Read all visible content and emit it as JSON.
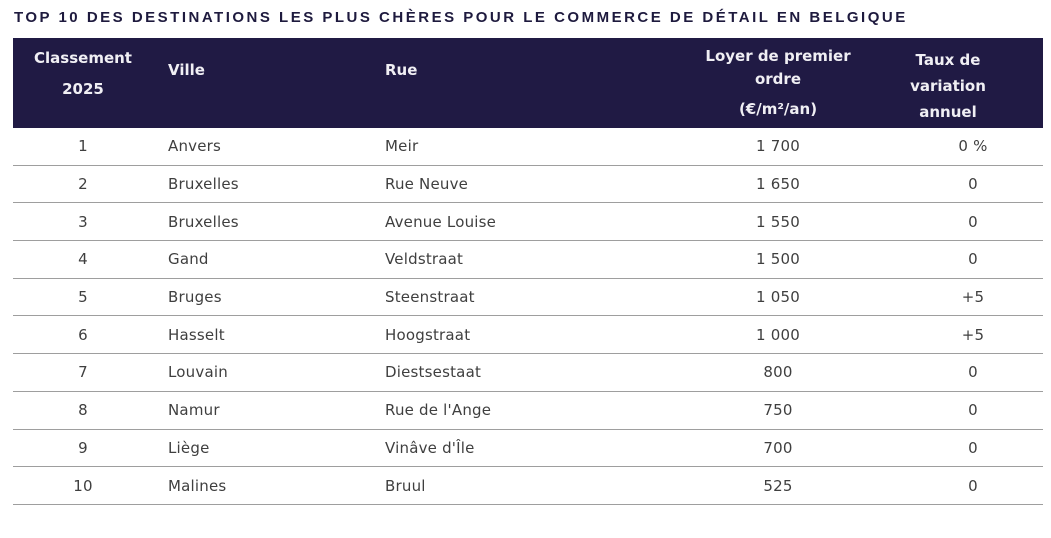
{
  "title": "TOP 10 DES DESTINATIONS LES PLUS CHÈRES POUR LE COMMERCE DE DÉTAIL EN BELGIQUE",
  "colors": {
    "header_bg": "#201a44",
    "header_text": "#f0eff4",
    "title_text": "#1e1a3e",
    "body_text": "#3f3f3f",
    "divider": "#9e9e9e"
  },
  "table": {
    "headers": {
      "rank_line1": "Classement",
      "rank_line2": "2025",
      "city": "Ville",
      "street": "Rue",
      "rent_main": "Loyer de premier ordre",
      "rent_unit": "(€/m²/an)",
      "variation": "Taux de variation annuel"
    },
    "rows": [
      {
        "rank": "1",
        "city": "Anvers",
        "street": "Meir",
        "rent": "1 700",
        "variation": "0 %"
      },
      {
        "rank": "2",
        "city": "Bruxelles",
        "street": "Rue Neuve",
        "rent": "1 650",
        "variation": "0"
      },
      {
        "rank": "3",
        "city": "Bruxelles",
        "street": "Avenue Louise",
        "rent": "1 550",
        "variation": "0"
      },
      {
        "rank": "4",
        "city": "Gand",
        "street": "Veldstraat",
        "rent": "1 500",
        "variation": "0"
      },
      {
        "rank": "5",
        "city": "Bruges",
        "street": "Steenstraat",
        "rent": "1 050",
        "variation": "+5"
      },
      {
        "rank": "6",
        "city": "Hasselt",
        "street": "Hoogstraat",
        "rent": "1 000",
        "variation": "+5"
      },
      {
        "rank": "7",
        "city": "Louvain",
        "street": "Diestsestaat",
        "rent": "800",
        "variation": "0"
      },
      {
        "rank": "8",
        "city": "Namur",
        "street": "Rue de l'Ange",
        "rent": "750",
        "variation": "0"
      },
      {
        "rank": "9",
        "city": "Liège",
        "street": "Vinâve d'Île",
        "rent": "700",
        "variation": "0"
      },
      {
        "rank": "10",
        "city": "Malines",
        "street": "Bruul",
        "rent": "525",
        "variation": "0"
      }
    ]
  },
  "chart_data": {
    "type": "table",
    "title": "TOP 10 DES DESTINATIONS LES PLUS CHÈRES POUR LE COMMERCE DE DÉTAIL EN BELGIQUE",
    "columns": [
      "Classement 2025",
      "Ville",
      "Rue",
      "Loyer de premier ordre (€/m²/an)",
      "Taux de variation annuel"
    ],
    "rows": [
      [
        1,
        "Anvers",
        "Meir",
        1700,
        "0 %"
      ],
      [
        2,
        "Bruxelles",
        "Rue Neuve",
        1650,
        "0"
      ],
      [
        3,
        "Bruxelles",
        "Avenue Louise",
        1550,
        "0"
      ],
      [
        4,
        "Gand",
        "Veldstraat",
        1500,
        "0"
      ],
      [
        5,
        "Bruges",
        "Steenstraat",
        1050,
        "+5"
      ],
      [
        6,
        "Hasselt",
        "Hoogstraat",
        1000,
        "+5"
      ],
      [
        7,
        "Louvain",
        "Diestsestaat",
        800,
        "0"
      ],
      [
        8,
        "Namur",
        "Rue de l'Ange",
        750,
        "0"
      ],
      [
        9,
        "Liège",
        "Vinâve d'Île",
        700,
        "0"
      ],
      [
        10,
        "Malines",
        "Bruul",
        525,
        "0"
      ]
    ]
  }
}
